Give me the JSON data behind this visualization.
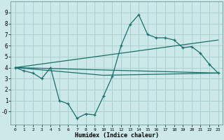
{
  "xlabel": "Humidex (Indice chaleur)",
  "bg_color": "#cce8e8",
  "grid_color": "#aad0d0",
  "line_color": "#1a6e6e",
  "xlim": [
    -0.5,
    23.5
  ],
  "ylim": [
    -1.2,
    10.0
  ],
  "xticks": [
    0,
    1,
    2,
    3,
    4,
    5,
    6,
    7,
    8,
    9,
    10,
    11,
    12,
    13,
    14,
    15,
    16,
    17,
    18,
    19,
    20,
    21,
    22,
    23
  ],
  "yticks": [
    0,
    1,
    2,
    3,
    4,
    5,
    6,
    7,
    8,
    9
  ],
  "ytick_labels": [
    "-0",
    "1",
    "2",
    "3",
    "4",
    "5",
    "6",
    "7",
    "8",
    "9"
  ],
  "line1_x": [
    0,
    1,
    2,
    3,
    4,
    5,
    6,
    7,
    8,
    9,
    10,
    11,
    12,
    13,
    14,
    15,
    16,
    17,
    18,
    19,
    20,
    21,
    22,
    23
  ],
  "line1_y": [
    4.0,
    3.7,
    3.5,
    3.0,
    4.0,
    1.0,
    0.7,
    -0.6,
    -0.2,
    -0.3,
    1.4,
    3.2,
    6.0,
    7.9,
    8.8,
    7.0,
    6.7,
    6.7,
    6.5,
    5.8,
    5.9,
    5.3,
    4.3,
    3.5
  ],
  "line2_x": [
    0,
    23
  ],
  "line2_y": [
    4.0,
    3.5
  ],
  "line3_x": [
    0,
    23
  ],
  "line3_y": [
    4.0,
    6.5
  ],
  "line4_x": [
    0,
    10,
    23
  ],
  "line4_y": [
    4.0,
    3.3,
    3.5
  ]
}
